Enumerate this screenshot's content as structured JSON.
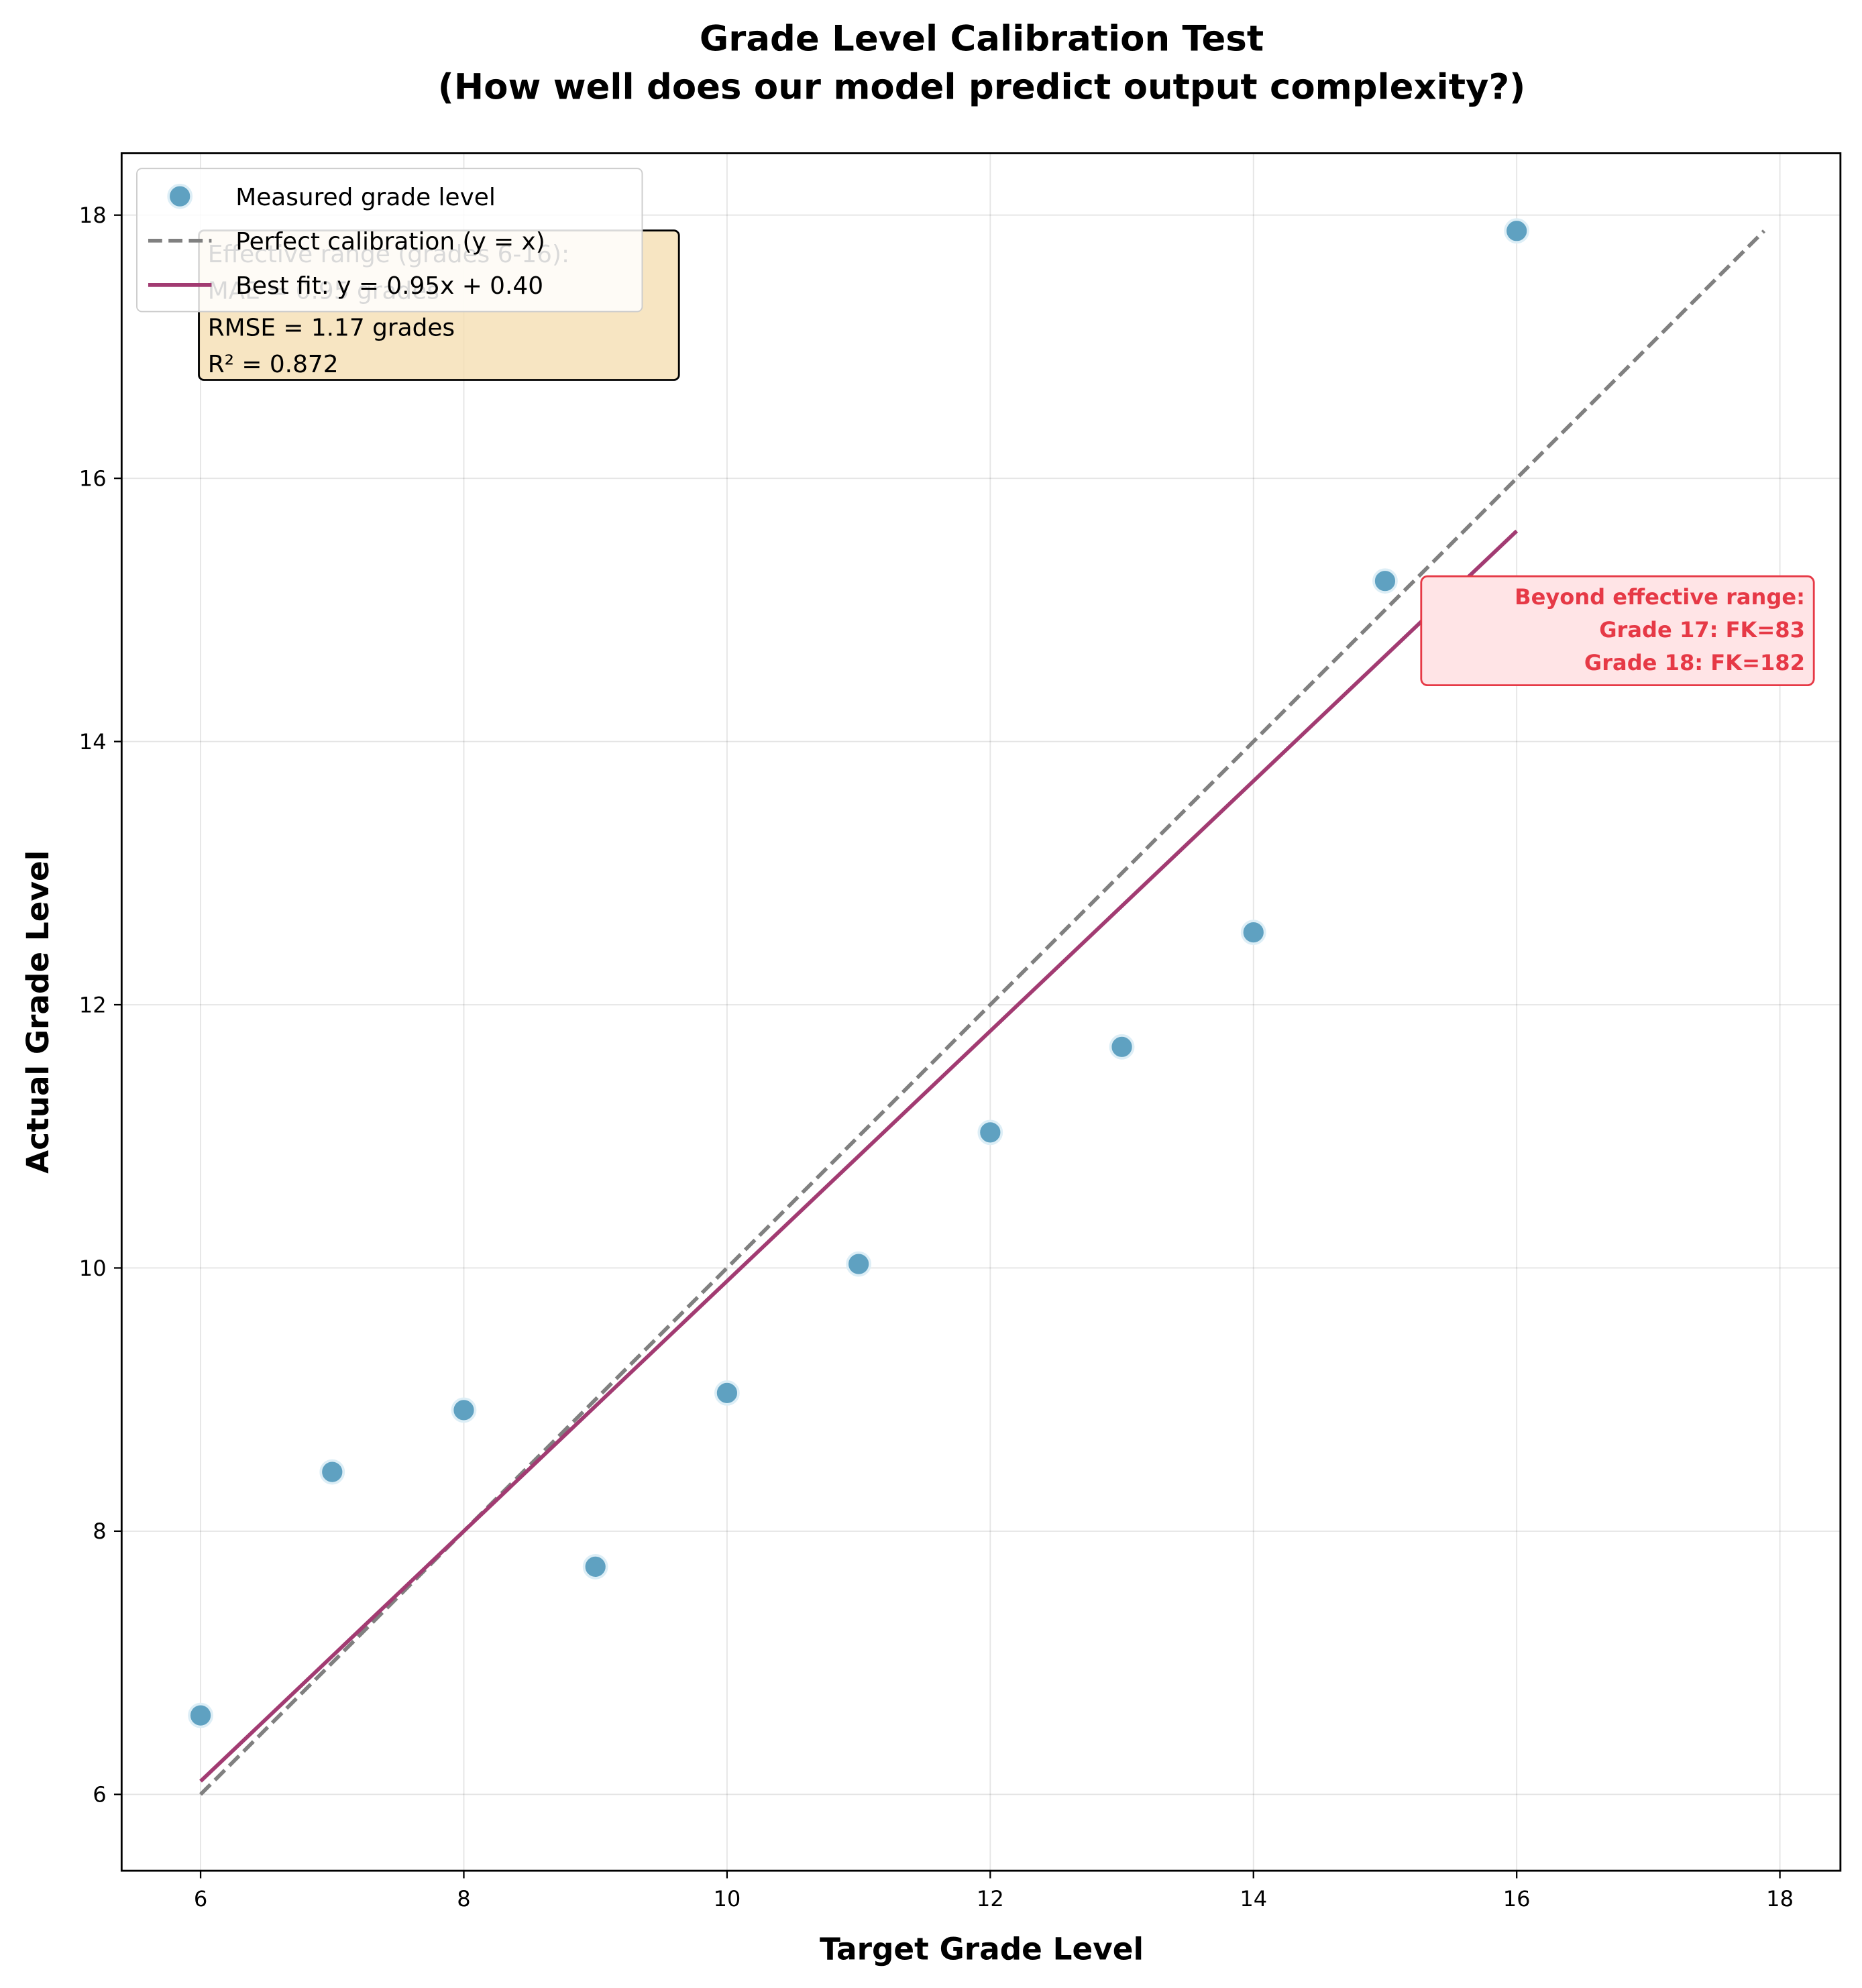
{
  "chart_data": {
    "type": "scatter",
    "title": "Grade Level Calibration Test",
    "subtitle": "(How well does our model predict output complexity?)",
    "x_label": "Target Grade Level",
    "y_label": "Actual Grade Level",
    "xlim": [
      5.4,
      18.46
    ],
    "ylim": [
      5.42,
      18.47
    ],
    "xticks": [
      6,
      8,
      10,
      12,
      14,
      16,
      18
    ],
    "yticks": [
      6,
      8,
      10,
      12,
      14,
      16,
      18
    ],
    "grid": true,
    "legend": "upper left",
    "series": [
      {
        "name": "Measured grade level",
        "type": "scatter",
        "color": "#5fa1c1",
        "x": [
          6,
          7,
          8,
          9,
          10,
          11,
          12,
          13,
          14,
          15,
          16
        ],
        "values": [
          6.6,
          8.45,
          8.92,
          7.73,
          9.05,
          10.03,
          11.03,
          11.68,
          12.55,
          15.22,
          17.88
        ]
      },
      {
        "name": "Perfect calibration (y = x)",
        "type": "line",
        "dash": true,
        "color": "#808080",
        "x": [
          6,
          17.88
        ],
        "values": [
          6,
          17.88
        ]
      },
      {
        "name": "Best fit: y = 0.95x + 0.40",
        "type": "line",
        "dash": false,
        "color": "#a23b72",
        "x": [
          6,
          16
        ],
        "values": [
          6.1,
          15.6
        ]
      }
    ],
    "stats_box": [
      "Effective range (grades 6-16):",
      "MAE = 0.95 grades",
      "RMSE = 1.17 grades",
      "R² = 0.872"
    ],
    "warning_box": [
      "Beyond effective range:",
      "Grade 17: FK=83",
      "Grade 18: FK=182"
    ]
  }
}
